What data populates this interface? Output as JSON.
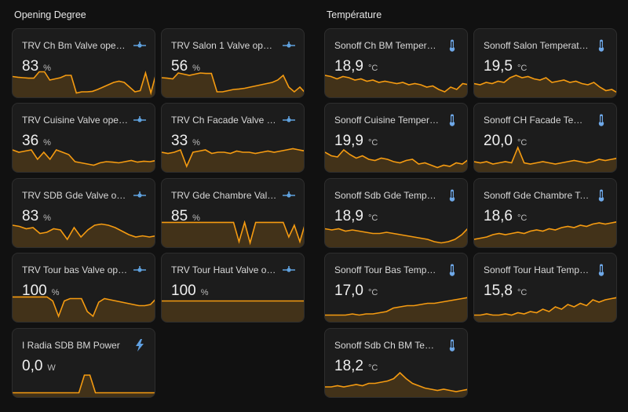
{
  "sections": {
    "opening": {
      "title": "Opening Degree"
    },
    "temp": {
      "title": "Température"
    }
  },
  "colors": {
    "accent": "#f59b11",
    "valve_icon": "#5fa1dd",
    "thermo_icon": "#6ea8e8",
    "bolt_icon": "#5f9fe0"
  },
  "opening": [
    {
      "name": "TRV Ch Bm Valve openi...",
      "value": "83",
      "unit": "%",
      "icon": "valve-icon"
    },
    {
      "name": "TRV Salon 1 Valve openi...",
      "value": "56",
      "unit": "%",
      "icon": "valve-icon"
    },
    {
      "name": "TRV Cuisine Valve openi...",
      "value": "36",
      "unit": "%",
      "icon": "valve-icon"
    },
    {
      "name": "TRV Ch Facade Valve op...",
      "value": "33",
      "unit": "%",
      "icon": "valve-icon"
    },
    {
      "name": "TRV SDB Gde Valve ope...",
      "value": "83",
      "unit": "%",
      "icon": "valve-icon"
    },
    {
      "name": "TRV Gde Chambre Valve...",
      "value": "85",
      "unit": "%",
      "icon": "valve-icon"
    },
    {
      "name": "TRV Tour bas Valve ope...",
      "value": "100",
      "unit": "%",
      "icon": "valve-icon"
    },
    {
      "name": "TRV Tour Haut Valve op...",
      "value": "100",
      "unit": "%",
      "icon": "valve-icon"
    },
    {
      "name": "I Radia SDB BM Power",
      "value": "0,0",
      "unit": "W",
      "icon": "lightning-bolt-icon"
    }
  ],
  "temperatures": [
    {
      "name": "Sonoff Ch BM Temperat...",
      "value": "18,9",
      "unit": "°C",
      "icon": "thermometer-icon"
    },
    {
      "name": "Sonoff Salon Temperature",
      "value": "19,5",
      "unit": "°C",
      "icon": "thermometer-icon"
    },
    {
      "name": "Sonoff Cuisine Tempera...",
      "value": "19,9",
      "unit": "°C",
      "icon": "thermometer-icon"
    },
    {
      "name": "Sonoff CH Facade Temp...",
      "value": "20,0",
      "unit": "°C",
      "icon": "thermometer-icon"
    },
    {
      "name": "Sonoff Sdb Gde Temper...",
      "value": "18,9",
      "unit": "°C",
      "icon": "thermometer-icon"
    },
    {
      "name": "Sonoff Gde Chambre Te...",
      "value": "18,6",
      "unit": "°C",
      "icon": "thermometer-icon"
    },
    {
      "name": "Sonoff Tour Bas Temper...",
      "value": "17,0",
      "unit": "°C",
      "icon": "thermometer-icon"
    },
    {
      "name": "Sonoff Tour Haut Tempe...",
      "value": "15,8",
      "unit": "°C",
      "icon": "thermometer-icon"
    },
    {
      "name": "Sonoff Sdb Ch BM Temp...",
      "value": "18,2",
      "unit": "°C",
      "icon": "thermometer-icon"
    }
  ]
}
